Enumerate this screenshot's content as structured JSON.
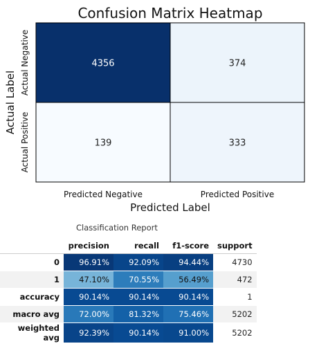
{
  "chart_data": [
    {
      "type": "heatmap",
      "title": "Confusion Matrix Heatmap",
      "xlabel": "Predicted Label",
      "ylabel": "Actual Label",
      "x_categories": [
        "Predicted Negative",
        "Predicted Positive"
      ],
      "y_categories": [
        "Actual Negative",
        "Actual Positive"
      ],
      "values": [
        [
          4356,
          374
        ],
        [
          139,
          333
        ]
      ],
      "colormap": "Blues",
      "colorbar": false
    },
    {
      "type": "table",
      "caption": "Classification Report",
      "columns": [
        "precision",
        "recall",
        "f1-score",
        "support"
      ],
      "rows": [
        {
          "label": "0",
          "values": [
            "96.91%",
            "92.09%",
            "94.44%",
            "4730"
          ],
          "raw": [
            0.9691,
            0.9209,
            0.9444
          ]
        },
        {
          "label": "1",
          "values": [
            "47.10%",
            "70.55%",
            "56.49%",
            "472"
          ],
          "raw": [
            0.471,
            0.7055,
            0.5649
          ]
        },
        {
          "label": "accuracy",
          "values": [
            "90.14%",
            "90.14%",
            "90.14%",
            "1"
          ],
          "raw": [
            0.9014,
            0.9014,
            0.9014
          ]
        },
        {
          "label": "macro avg",
          "values": [
            "72.00%",
            "81.32%",
            "75.46%",
            "5202"
          ],
          "raw": [
            0.72,
            0.8132,
            0.7546
          ]
        },
        {
          "label": "weighted avg",
          "values": [
            "92.39%",
            "90.14%",
            "91.00%",
            "5202"
          ],
          "raw": [
            0.9239,
            0.9014,
            0.91
          ]
        }
      ]
    }
  ]
}
